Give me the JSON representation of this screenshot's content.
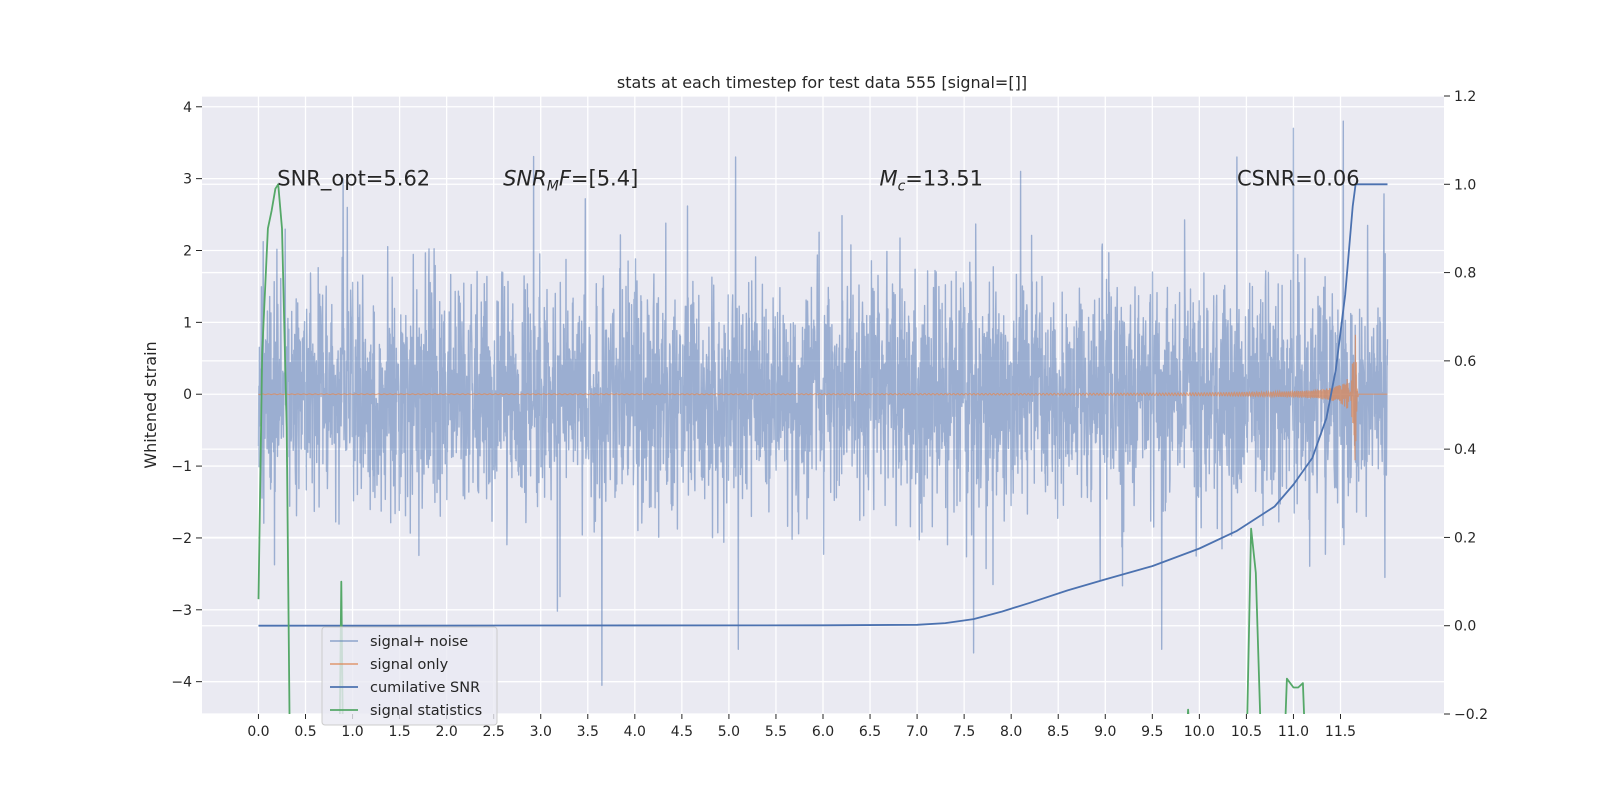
{
  "chart_data": {
    "type": "line",
    "title": "stats at each timestep for test data 555 [signal=[]]",
    "ylabel": "Whitened strain",
    "y2label": "",
    "xlim": [
      -0.6,
      12.6
    ],
    "ylim": [
      -4.45,
      4.15
    ],
    "y2lim": [
      -0.2,
      1.2
    ],
    "x_ticks": [
      "0.0",
      "0.5",
      "1.0",
      "1.5",
      "2.0",
      "2.5",
      "3.0",
      "3.5",
      "4.0",
      "4.5",
      "5.0",
      "5.5",
      "6.0",
      "6.5",
      "7.0",
      "7.5",
      "8.0",
      "8.5",
      "9.0",
      "9.5",
      "10.0",
      "10.5",
      "11.0",
      "11.5"
    ],
    "y_ticks": [
      "−4",
      "−3",
      "−2",
      "−1",
      "0",
      "1",
      "2",
      "3",
      "4"
    ],
    "y2_ticks": [
      "−0.2",
      "0.0",
      "0.2",
      "0.4",
      "0.6",
      "0.8",
      "1.0",
      "1.2"
    ],
    "grid": true,
    "legend_position": "lower-left",
    "annotations": [
      {
        "text": "SNR_opt=5.62",
        "x": 0.2,
        "y": 3.0
      },
      {
        "text": "SNR",
        "sub": "M",
        "suffix": "F=[5.4]",
        "italic": true,
        "x": 2.6,
        "y": 3.0
      },
      {
        "text": "M",
        "sub": "c",
        "suffix": "=13.51",
        "italic": true,
        "x": 6.6,
        "y": 3.0
      },
      {
        "text": "CSNR=0.06",
        "x": 10.4,
        "y": 3.0
      }
    ],
    "series": [
      {
        "name": "signal+ noise",
        "axis": "left",
        "color": "#4c72b0",
        "style": "noise",
        "x_start": 0.0,
        "x_end": 12.0,
        "std": 0.82,
        "spikes": [
          [
            3.65,
            -4.05
          ],
          [
            11.53,
            3.8
          ],
          [
            5.07,
            3.3
          ],
          [
            11.0,
            3.7
          ],
          [
            10.4,
            3.3
          ],
          [
            9.6,
            -3.55
          ],
          [
            7.6,
            -3.6
          ],
          [
            5.1,
            -3.55
          ],
          [
            8.1,
            3.1
          ],
          [
            0.9,
            3.0
          ]
        ]
      },
      {
        "name": "signal only",
        "axis": "left",
        "color": "#dd8452",
        "style": "chirp",
        "x_start": 0.0,
        "x_end": 12.0,
        "merger_x": 11.65,
        "peak_amplitude": 1.05
      },
      {
        "name": "cumilative SNR",
        "axis": "right",
        "color": "#4c72b0",
        "points": [
          [
            0.0,
            0.0
          ],
          [
            6.0,
            0.001
          ],
          [
            7.0,
            0.002
          ],
          [
            7.3,
            0.006
          ],
          [
            7.6,
            0.015
          ],
          [
            7.9,
            0.032
          ],
          [
            8.2,
            0.052
          ],
          [
            8.6,
            0.08
          ],
          [
            9.0,
            0.105
          ],
          [
            9.5,
            0.135
          ],
          [
            10.0,
            0.175
          ],
          [
            10.4,
            0.215
          ],
          [
            10.8,
            0.27
          ],
          [
            11.0,
            0.32
          ],
          [
            11.2,
            0.38
          ],
          [
            11.35,
            0.47
          ],
          [
            11.45,
            0.58
          ],
          [
            11.55,
            0.75
          ],
          [
            11.63,
            0.95
          ],
          [
            11.66,
            1.0
          ],
          [
            12.0,
            1.0
          ]
        ]
      },
      {
        "name": "signal statistics",
        "axis": "right",
        "color": "#55a868",
        "points": [
          [
            0.0,
            0.06
          ],
          [
            0.04,
            0.62
          ],
          [
            0.1,
            0.9
          ],
          [
            0.14,
            0.94
          ],
          [
            0.18,
            0.99
          ],
          [
            0.21,
            1.0
          ],
          [
            0.25,
            0.9
          ],
          [
            0.3,
            0.45
          ],
          [
            0.33,
            -0.2
          ],
          [
            0.35,
            -0.35
          ],
          null,
          [
            0.86,
            -0.3
          ],
          [
            0.88,
            0.1
          ],
          [
            0.9,
            -0.3
          ],
          null,
          [
            9.85,
            -0.3
          ],
          [
            9.88,
            -0.19
          ],
          [
            9.91,
            -0.3
          ],
          null,
          [
            10.5,
            -0.3
          ],
          [
            10.55,
            0.22
          ],
          [
            10.6,
            0.12
          ],
          [
            10.66,
            -0.3
          ],
          null,
          [
            10.9,
            -0.3
          ],
          [
            10.93,
            -0.12
          ],
          [
            11.0,
            -0.14
          ],
          [
            11.05,
            -0.14
          ],
          [
            11.1,
            -0.13
          ],
          [
            11.13,
            -0.3
          ]
        ]
      }
    ]
  }
}
